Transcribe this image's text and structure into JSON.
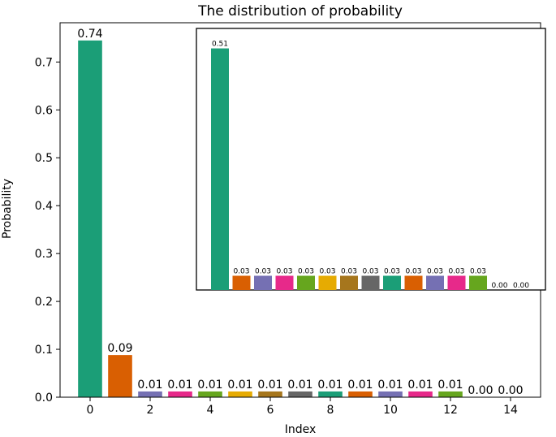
{
  "chart_data": [
    {
      "type": "bar",
      "title": "The distribution of probability",
      "xlabel": "Index",
      "ylabel": "Probability",
      "x": [
        0,
        1,
        2,
        3,
        4,
        5,
        6,
        7,
        8,
        9,
        10,
        11,
        12,
        13,
        14
      ],
      "values": [
        0.745,
        0.088,
        0.012,
        0.012,
        0.012,
        0.012,
        0.012,
        0.012,
        0.012,
        0.012,
        0.012,
        0.012,
        0.012,
        0.0,
        0.0
      ],
      "value_labels": [
        "0.74",
        "0.09",
        "0.01",
        "0.01",
        "0.01",
        "0.01",
        "0.01",
        "0.01",
        "0.01",
        "0.01",
        "0.01",
        "0.01",
        "0.01",
        "0.00",
        "0.00"
      ],
      "xticks": [
        0,
        2,
        4,
        6,
        8,
        10,
        12,
        14
      ],
      "xtick_labels": [
        "0",
        "2",
        "4",
        "6",
        "8",
        "10",
        "12",
        "14"
      ],
      "yticks": [
        0.0,
        0.1,
        0.2,
        0.3,
        0.4,
        0.5,
        0.6,
        0.7
      ],
      "ytick_labels": [
        "0.0",
        "0.1",
        "0.2",
        "0.3",
        "0.4",
        "0.5",
        "0.6",
        "0.7"
      ],
      "xlim": [
        -1.0,
        15.0
      ],
      "ylim": [
        0,
        0.782
      ],
      "grid": false,
      "colors": [
        "#1b9e77",
        "#d95f02",
        "#7570b3",
        "#e7298a",
        "#66a61e",
        "#e6ab02",
        "#a6761d",
        "#666666",
        "#1b9e77",
        "#d95f02",
        "#7570b3",
        "#e7298a",
        "#66a61e",
        "#e6ab02",
        "#a6761d"
      ]
    },
    {
      "type": "bar",
      "x": [
        0,
        1,
        2,
        3,
        4,
        5,
        6,
        7,
        8,
        9,
        10,
        11,
        12,
        13,
        14
      ],
      "values": [
        0.51,
        0.03,
        0.03,
        0.03,
        0.03,
        0.03,
        0.03,
        0.03,
        0.03,
        0.03,
        0.03,
        0.03,
        0.03,
        0.0,
        0.0
      ],
      "value_labels": [
        "0.51",
        "0.03",
        "0.03",
        "0.03",
        "0.03",
        "0.03",
        "0.03",
        "0.03",
        "0.03",
        "0.03",
        "0.03",
        "0.03",
        "0.03",
        "0.00",
        "0.00"
      ],
      "ylim": [
        0,
        0.535
      ],
      "colors": [
        "#1b9e77",
        "#d95f02",
        "#7570b3",
        "#e7298a",
        "#66a61e",
        "#e6ab02",
        "#a6761d",
        "#666666",
        "#1b9e77",
        "#d95f02",
        "#7570b3",
        "#e7298a",
        "#66a61e",
        "#e6ab02",
        "#a6761d"
      ]
    }
  ]
}
